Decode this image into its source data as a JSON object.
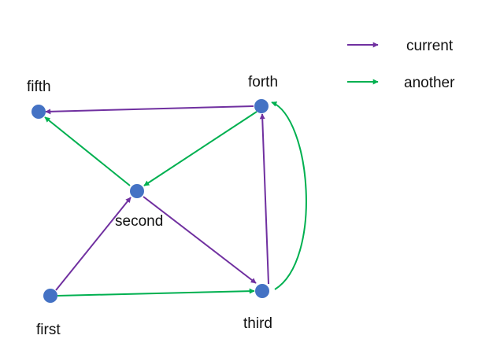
{
  "colors": {
    "current": "#7030A0",
    "another": "#00B050",
    "node": "#4472C4",
    "text": "#111111"
  },
  "legend": {
    "current_label": "current",
    "another_label": "another"
  },
  "nodes": {
    "first": "first",
    "second": "second",
    "third": "third",
    "forth": "forth",
    "fifth": "fifth"
  },
  "edges": [
    {
      "from": "forth",
      "to": "fifth",
      "type": "current"
    },
    {
      "from": "first",
      "to": "second",
      "type": "current"
    },
    {
      "from": "second",
      "to": "third",
      "type": "current"
    },
    {
      "from": "third",
      "to": "forth",
      "type": "current"
    },
    {
      "from": "second",
      "to": "fifth",
      "type": "another"
    },
    {
      "from": "forth",
      "to": "second",
      "type": "another"
    },
    {
      "from": "first",
      "to": "third",
      "type": "another"
    },
    {
      "from": "third",
      "to": "forth",
      "type": "another",
      "curved": true
    }
  ]
}
